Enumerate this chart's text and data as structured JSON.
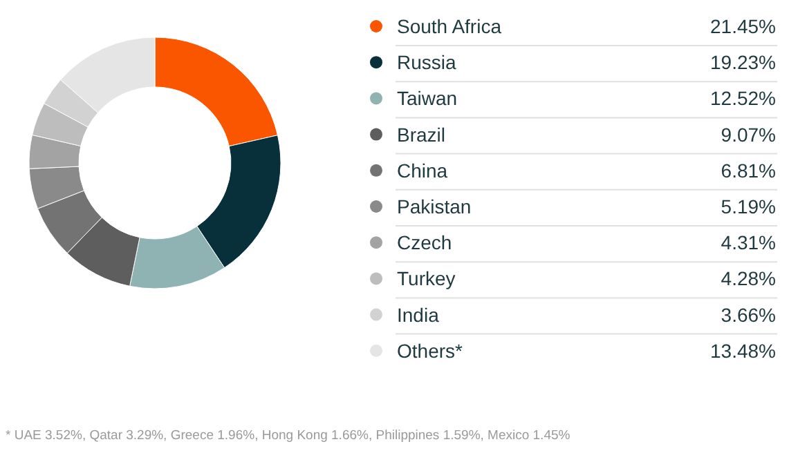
{
  "chart_data": {
    "type": "donut",
    "categories": [
      "South Africa",
      "Russia",
      "Taiwan",
      "Brazil",
      "China",
      "Pakistan",
      "Czech",
      "Turkey",
      "India",
      "Others*"
    ],
    "values": [
      21.45,
      19.23,
      12.52,
      9.07,
      6.81,
      5.19,
      4.31,
      4.28,
      3.66,
      13.48
    ],
    "value_labels": [
      "21.45%",
      "19.23%",
      "12.52%",
      "9.07%",
      "6.81%",
      "5.19%",
      "4.31%",
      "4.28%",
      "3.66%",
      "13.48%"
    ],
    "colors": [
      "#fa5600",
      "#07303a",
      "#8fb3b3",
      "#5e5e5e",
      "#737373",
      "#8a8a8a",
      "#a3a3a3",
      "#bdbdbd",
      "#d2d2d2",
      "#e5e5e5"
    ],
    "legend": "right",
    "annotations": [
      "* UAE 3.52%, Qatar 3.29%, Greece 1.96%, Hong Kong 1.66%, Philippines 1.59%, Mexico 1.45%"
    ]
  }
}
